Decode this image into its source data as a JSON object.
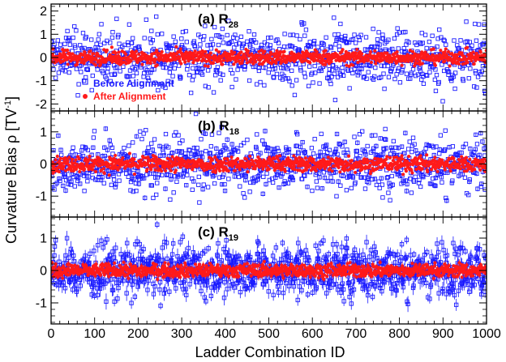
{
  "chart_data": {
    "type": "scatter",
    "xlabel": "Ladder Combination ID",
    "ylabel": "Curvature Bias ρ [TV",
    "ylabel_sup": "-1",
    "ylabel_end": "]",
    "xlim": [
      0,
      1000
    ],
    "x_ticks": [
      0,
      100,
      200,
      300,
      400,
      500,
      600,
      700,
      800,
      900,
      1000
    ],
    "legend": {
      "placement": "bottom-left of top panel",
      "entries": [
        {
          "label": "Before Alignment",
          "color": "#1a1aff",
          "marker": "open-square"
        },
        {
          "label": "After Alignment",
          "color": "#ff1a1a",
          "marker": "filled-circle"
        }
      ]
    },
    "panels": [
      {
        "label": "(a) R",
        "label_sub": "28",
        "ylim": [
          -2.3,
          2.3
        ],
        "y_ticks": [
          -2,
          -1,
          0,
          1,
          2
        ],
        "series": [
          {
            "name": "Before Alignment",
            "n_points": 1000,
            "spread": 0.75,
            "error_bar": 0.05
          },
          {
            "name": "After Alignment",
            "n_points": 1000,
            "spread": 0.15,
            "error_bar": 0.03
          }
        ]
      },
      {
        "label": "(b) R",
        "label_sub": "18",
        "ylim": [
          -1.65,
          1.65
        ],
        "y_ticks": [
          -1,
          0,
          1
        ],
        "series": [
          {
            "name": "Before Alignment",
            "n_points": 1000,
            "spread": 0.55,
            "error_bar": 0.06
          },
          {
            "name": "After Alignment",
            "n_points": 1000,
            "spread": 0.12,
            "error_bar": 0.03
          }
        ]
      },
      {
        "label": "(c) R",
        "label_sub": "19",
        "ylim": [
          -1.65,
          1.65
        ],
        "y_ticks": [
          -1,
          0,
          1
        ],
        "series": [
          {
            "name": "Before Alignment",
            "n_points": 1000,
            "spread": 0.5,
            "error_bar": 0.18
          },
          {
            "name": "After Alignment",
            "n_points": 1000,
            "spread": 0.1,
            "error_bar": 0.08
          }
        ]
      }
    ]
  }
}
